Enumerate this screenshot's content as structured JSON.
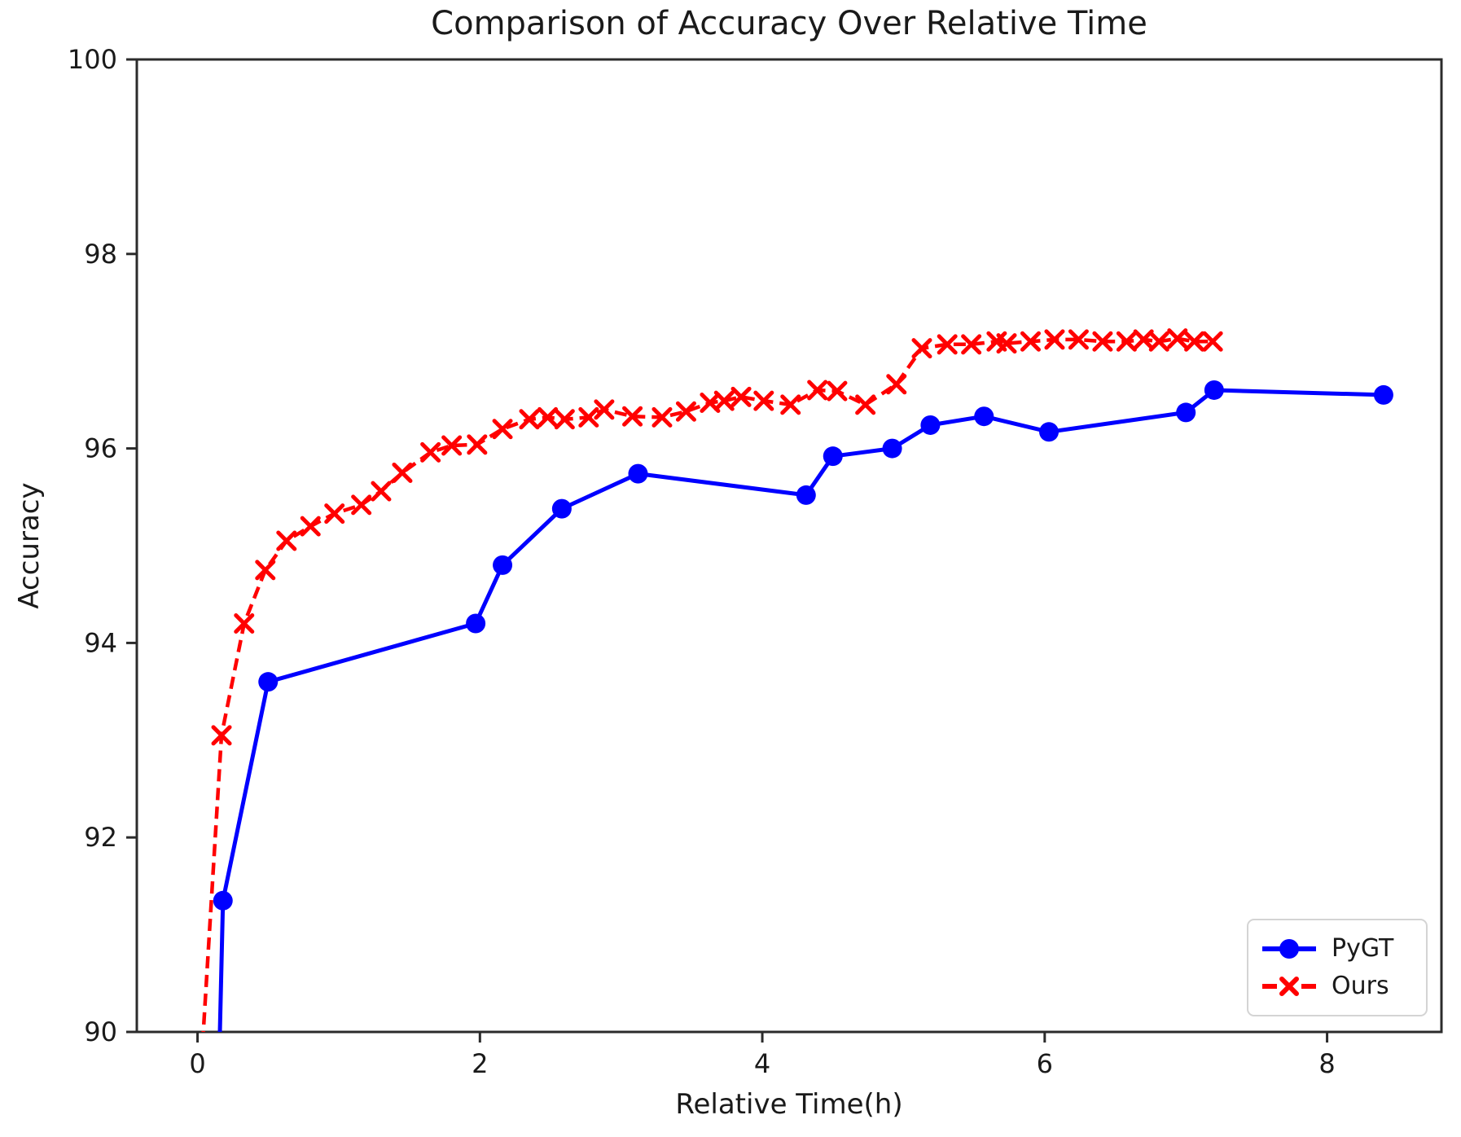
{
  "chart_data": {
    "type": "line",
    "title": "Comparison of Accuracy Over Relative Time",
    "xlabel": "Relative Time(h)",
    "ylabel": "Accuracy",
    "xlim": [
      -0.43,
      8.81
    ],
    "ylim": [
      90,
      100
    ],
    "xticks": [
      0,
      2,
      4,
      6,
      8
    ],
    "yticks": [
      90,
      92,
      94,
      96,
      98,
      100
    ],
    "grid": false,
    "legend_position": "lower right",
    "axis_color": "#2b2b2b",
    "text_color": "#1a1a1a",
    "series": [
      {
        "name": "PyGT",
        "color": "#0000ff",
        "linestyle": "solid",
        "marker": "circle",
        "points": [
          [
            0.15,
            89.5
          ],
          [
            0.18,
            91.35
          ],
          [
            0.5,
            93.6
          ],
          [
            1.97,
            94.2
          ],
          [
            2.16,
            94.8
          ],
          [
            2.58,
            95.38
          ],
          [
            3.12,
            95.74
          ],
          [
            4.31,
            95.52
          ],
          [
            4.5,
            95.92
          ],
          [
            4.92,
            96.0
          ],
          [
            5.19,
            96.24
          ],
          [
            5.57,
            96.33
          ],
          [
            6.03,
            96.17
          ],
          [
            7.0,
            96.37
          ],
          [
            7.2,
            96.6
          ],
          [
            8.4,
            96.55
          ]
        ]
      },
      {
        "name": "Ours",
        "color": "#ff0000",
        "linestyle": "dashed",
        "marker": "x",
        "points": [
          [
            0.02,
            89.5
          ],
          [
            0.17,
            93.05
          ],
          [
            0.33,
            94.2
          ],
          [
            0.48,
            94.75
          ],
          [
            0.63,
            95.05
          ],
          [
            0.8,
            95.2
          ],
          [
            0.97,
            95.33
          ],
          [
            1.16,
            95.42
          ],
          [
            1.3,
            95.56
          ],
          [
            1.45,
            95.75
          ],
          [
            1.65,
            95.96
          ],
          [
            1.8,
            96.03
          ],
          [
            1.98,
            96.04
          ],
          [
            2.16,
            96.2
          ],
          [
            2.35,
            96.3
          ],
          [
            2.48,
            96.32
          ],
          [
            2.6,
            96.3
          ],
          [
            2.77,
            96.32
          ],
          [
            2.88,
            96.4
          ],
          [
            3.08,
            96.33
          ],
          [
            3.29,
            96.32
          ],
          [
            3.46,
            96.38
          ],
          [
            3.63,
            96.47
          ],
          [
            3.73,
            96.49
          ],
          [
            3.85,
            96.53
          ],
          [
            4.01,
            96.49
          ],
          [
            4.2,
            96.45
          ],
          [
            4.39,
            96.6
          ],
          [
            4.53,
            96.59
          ],
          [
            4.73,
            96.45
          ],
          [
            4.95,
            96.66
          ],
          [
            5.13,
            97.03
          ],
          [
            5.31,
            97.07
          ],
          [
            5.48,
            97.07
          ],
          [
            5.66,
            97.1
          ],
          [
            5.73,
            97.08
          ],
          [
            5.9,
            97.1
          ],
          [
            6.07,
            97.12
          ],
          [
            6.24,
            97.12
          ],
          [
            6.41,
            97.1
          ],
          [
            6.58,
            97.1
          ],
          [
            6.7,
            97.12
          ],
          [
            6.81,
            97.1
          ],
          [
            6.94,
            97.13
          ],
          [
            7.06,
            97.1
          ],
          [
            7.19,
            97.1
          ]
        ]
      }
    ]
  }
}
